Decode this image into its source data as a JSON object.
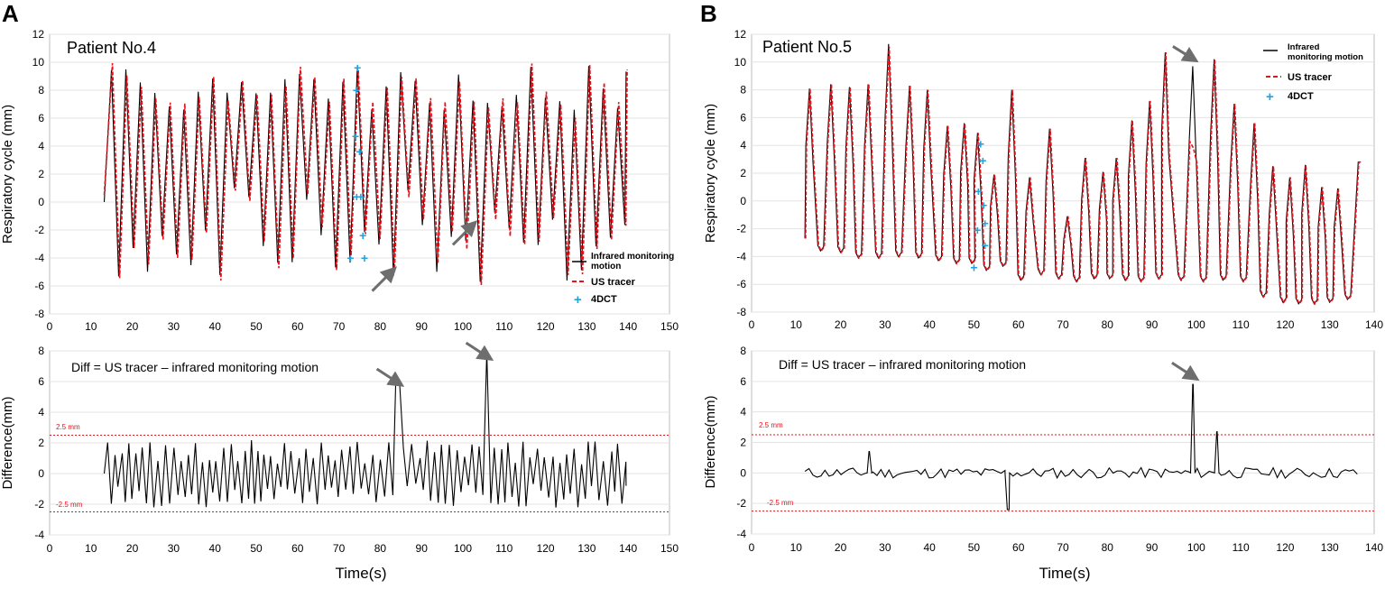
{
  "panels": {
    "A": {
      "letter": "A",
      "top_title": "Patient No.4",
      "diff_title": "Diff = US tracer – infrared monitoring motion",
      "ylabel_top": "Respiratory cycle (mm)",
      "ylabel_bottom": "Difference(mm)",
      "xlabel": "Time(s)",
      "threshold_upper_label": "2.5 mm",
      "threshold_lower_label": "-2.5 mm",
      "legend": [
        "Infrared monitoring motion",
        "US tracer",
        "4DCT"
      ]
    },
    "B": {
      "letter": "B",
      "top_title": "Patient No.5",
      "diff_title": "Diff = US tracer – infrared monitoring motion",
      "ylabel_top": "Respiratory cycle (mm)",
      "ylabel_bottom": "Difference(mm)",
      "xlabel": "Time(s)",
      "threshold_upper_label": "2.5 mm",
      "threshold_lower_label": "-2.5 mm",
      "legend": [
        "Infrared monitoring motion",
        "US tracer",
        "4DCT"
      ]
    }
  },
  "colors": {
    "infrared": "#000000",
    "us_tracer": "#e8121b",
    "dct": "#1fa3e0",
    "threshold": "#e8121b",
    "arrow": "#6e6e6e"
  },
  "chart_data": [
    {
      "id": "A-top",
      "type": "line",
      "title": "Patient No.4",
      "xlabel": "",
      "ylabel": "Respiratory cycle (mm)",
      "xlim": [
        0,
        150
      ],
      "ylim": [
        -8,
        12
      ],
      "xticks": [
        0,
        10,
        20,
        30,
        40,
        50,
        60,
        70,
        80,
        90,
        100,
        110,
        120,
        130,
        140,
        150
      ],
      "yticks": [
        -8,
        -6,
        -4,
        -2,
        0,
        2,
        4,
        6,
        8,
        10,
        12
      ],
      "signal": {
        "t_start": 13.2,
        "t_end": 139.5,
        "period": 3.5,
        "max_range": [
          6.5,
          9.8
        ],
        "min_range": [
          -5.8,
          1.0
        ]
      },
      "series": [
        {
          "name": "Infrared monitoring motion",
          "style": "solid"
        },
        {
          "name": "US tracer",
          "style": "dashed"
        }
      ],
      "dct_points": [
        [
          74.5,
          9.6
        ],
        [
          74.2,
          8.0
        ],
        [
          74.0,
          4.7
        ],
        [
          75.0,
          3.6
        ],
        [
          74.3,
          0.4
        ],
        [
          75.3,
          0.4
        ],
        [
          75.8,
          -2.4
        ],
        [
          72.8,
          -4.0
        ],
        [
          76.2,
          -4.0
        ]
      ],
      "annotations": [
        {
          "type": "arrow",
          "x": 82,
          "y": -5.2
        },
        {
          "type": "arrow",
          "x": 101.5,
          "y": -1.9
        }
      ],
      "legend": [
        "Infrared monitoring motion",
        "US tracer",
        "4DCT"
      ]
    },
    {
      "id": "A-bottom",
      "type": "line",
      "title": "Diff = US tracer – infrared monitoring motion",
      "xlabel": "Time(s)",
      "ylabel": "Difference(mm)",
      "xlim": [
        0,
        150
      ],
      "ylim": [
        -4,
        8
      ],
      "xticks": [
        0,
        10,
        20,
        30,
        40,
        50,
        60,
        70,
        80,
        90,
        100,
        110,
        120,
        130,
        140,
        150
      ],
      "yticks": [
        -4,
        -2,
        0,
        2,
        4,
        6,
        8
      ],
      "thresholds": [
        2.5,
        -2.5
      ],
      "signal": {
        "t_start": 13.2,
        "t_end": 139.5,
        "period": 1.75,
        "amplitude": 1.6
      },
      "spikes": [
        {
          "x": 84.2,
          "y": 6.0
        },
        {
          "x": 105.8,
          "y": 7.7
        }
      ],
      "annotations": [
        {
          "type": "arrow",
          "x": 84.2,
          "y": 6.0
        },
        {
          "type": "arrow",
          "x": 105.8,
          "y": 7.7
        }
      ]
    },
    {
      "id": "B-top",
      "type": "line",
      "title": "Patient No.5",
      "xlabel": "",
      "ylabel": "Respiratory cycle (mm)",
      "xlim": [
        0,
        140
      ],
      "ylim": [
        -8,
        12
      ],
      "xticks": [
        0,
        10,
        20,
        30,
        40,
        50,
        60,
        70,
        80,
        90,
        100,
        110,
        120,
        130,
        140
      ],
      "yticks": [
        -8,
        -6,
        -4,
        -2,
        0,
        2,
        4,
        6,
        8,
        10,
        12
      ],
      "start": {
        "x": 12,
        "y": -2.7
      },
      "end": {
        "x": 137,
        "y": 2.8
      },
      "peaks": [
        {
          "x": 13.0,
          "y": 8.1
        },
        {
          "x": 17.8,
          "y": 8.4
        },
        {
          "x": 22.0,
          "y": 8.2
        },
        {
          "x": 26.2,
          "y": 8.4
        },
        {
          "x": 30.8,
          "y": 11.3
        },
        {
          "x": 35.5,
          "y": 8.3
        },
        {
          "x": 39.5,
          "y": 8.0
        },
        {
          "x": 44.0,
          "y": 5.4
        },
        {
          "x": 47.8,
          "y": 5.6
        },
        {
          "x": 50.8,
          "y": 4.9
        },
        {
          "x": 54.5,
          "y": 1.9
        },
        {
          "x": 58.5,
          "y": 8.0
        },
        {
          "x": 62.5,
          "y": 1.7
        },
        {
          "x": 67.0,
          "y": 5.2
        },
        {
          "x": 71.0,
          "y": -1.1
        },
        {
          "x": 75.0,
          "y": 3.1
        },
        {
          "x": 79.0,
          "y": 2.1
        },
        {
          "x": 82.0,
          "y": 3.1
        },
        {
          "x": 85.5,
          "y": 5.8
        },
        {
          "x": 89.5,
          "y": 7.2
        },
        {
          "x": 93.0,
          "y": 10.7
        },
        {
          "x": 99.2,
          "y": 9.7
        },
        {
          "x": 104.0,
          "y": 10.2
        },
        {
          "x": 108.5,
          "y": 7.0
        },
        {
          "x": 113.0,
          "y": 5.6
        },
        {
          "x": 117.2,
          "y": 2.5
        },
        {
          "x": 121.0,
          "y": 1.7
        },
        {
          "x": 124.5,
          "y": 2.6
        },
        {
          "x": 128.2,
          "y": 1.0
        },
        {
          "x": 131.8,
          "y": 0.9
        }
      ],
      "troughs": [
        {
          "x": 15.5,
          "y": -3.6
        },
        {
          "x": 20.0,
          "y": -3.7
        },
        {
          "x": 24.0,
          "y": -4.1
        },
        {
          "x": 28.5,
          "y": -4.1
        },
        {
          "x": 33.0,
          "y": -4.0
        },
        {
          "x": 37.5,
          "y": -4.1
        },
        {
          "x": 42.0,
          "y": -4.3
        },
        {
          "x": 46.0,
          "y": -4.5
        },
        {
          "x": 49.5,
          "y": -4.5
        },
        {
          "x": 52.8,
          "y": -5.0
        },
        {
          "x": 56.5,
          "y": -4.7
        },
        {
          "x": 60.5,
          "y": -5.7
        },
        {
          "x": 65.0,
          "y": -5.3
        },
        {
          "x": 69.0,
          "y": -5.6
        },
        {
          "x": 73.0,
          "y": -5.8
        },
        {
          "x": 77.0,
          "y": -5.6
        },
        {
          "x": 80.5,
          "y": -5.6
        },
        {
          "x": 84.0,
          "y": -5.7
        },
        {
          "x": 87.5,
          "y": -5.8
        },
        {
          "x": 91.5,
          "y": -5.6
        },
        {
          "x": 96.5,
          "y": -5.7
        },
        {
          "x": 101.5,
          "y": -5.8
        },
        {
          "x": 106.0,
          "y": -5.7
        },
        {
          "x": 110.5,
          "y": -5.8
        },
        {
          "x": 115.0,
          "y": -6.9
        },
        {
          "x": 119.5,
          "y": -7.3
        },
        {
          "x": 123.0,
          "y": -7.4
        },
        {
          "x": 126.5,
          "y": -7.4
        },
        {
          "x": 130.0,
          "y": -7.3
        },
        {
          "x": 134.0,
          "y": -7.1
        }
      ],
      "series": [
        {
          "name": "Infrared monitoring motion",
          "style": "solid"
        },
        {
          "name": "US tracer",
          "style": "dashed"
        }
      ],
      "dct_points": [
        [
          51.5,
          4.1
        ],
        [
          52.0,
          2.9
        ],
        [
          51.0,
          0.7
        ],
        [
          52.2,
          -0.3
        ],
        [
          52.5,
          -1.6
        ],
        [
          50.8,
          -2.1
        ],
        [
          52.5,
          -3.2
        ],
        [
          50.0,
          -4.8
        ]
      ],
      "annotations": [
        {
          "type": "arrow",
          "x": 99.2,
          "y": 9.7
        }
      ],
      "legend": [
        "Infrared monitoring motion",
        "US tracer",
        "4DCT"
      ]
    },
    {
      "id": "B-bottom",
      "type": "line",
      "title": "Diff = US tracer – infrared monitoring motion",
      "xlabel": "Time(s)",
      "ylabel": "Difference(mm)",
      "xlim": [
        0,
        140
      ],
      "ylim": [
        -4,
        8
      ],
      "xticks": [
        0,
        10,
        20,
        30,
        40,
        50,
        60,
        70,
        80,
        90,
        100,
        110,
        120,
        130,
        140
      ],
      "yticks": [
        -4,
        -2,
        0,
        2,
        4,
        6,
        8
      ],
      "thresholds": [
        2.5,
        -2.5
      ],
      "signal": {
        "t_start": 12,
        "t_end": 137,
        "amplitude": 0.35
      },
      "spikes": [
        {
          "x": 26.5,
          "y": 1.4
        },
        {
          "x": 57.5,
          "y": -2.4
        },
        {
          "x": 99.2,
          "y": 5.8
        },
        {
          "x": 104.6,
          "y": 2.7
        }
      ],
      "annotations": [
        {
          "type": "arrow",
          "x": 99.2,
          "y": 5.8
        }
      ]
    }
  ]
}
